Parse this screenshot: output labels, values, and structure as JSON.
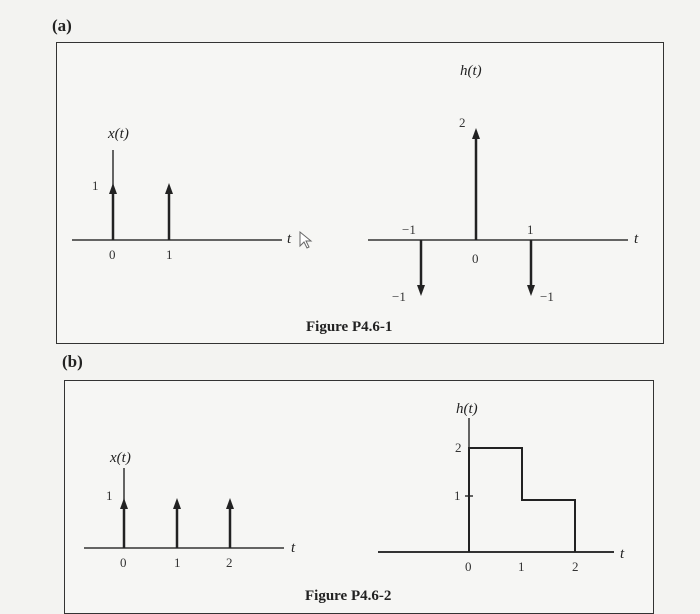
{
  "part_a": {
    "label": "(a)",
    "figure_caption": "Figure P4.6-1",
    "x_plot": {
      "title": "x(t)",
      "axis_var": "t",
      "impulses": [
        {
          "t": 0,
          "area": 1
        },
        {
          "t": 1,
          "area": 1
        }
      ],
      "tick_labels": [
        "0",
        "1"
      ],
      "amp_label": "1"
    },
    "h_plot": {
      "title": "h(t)",
      "axis_var": "t",
      "impulses": [
        {
          "t": -1,
          "area": -1
        },
        {
          "t": 0,
          "area": 2
        },
        {
          "t": 1,
          "area": -1
        }
      ],
      "tick_labels": [
        "−1",
        "0",
        "1"
      ],
      "amp_labels": {
        "peak": "2",
        "neg_left": "−1",
        "neg_right": "−1"
      }
    }
  },
  "part_b": {
    "label": "(b)",
    "figure_caption": "Figure P4.6-2",
    "x_plot": {
      "title": "x(t)",
      "axis_var": "t",
      "impulses": [
        {
          "t": 0,
          "area": 1
        },
        {
          "t": 1,
          "area": 1
        },
        {
          "t": 2,
          "area": 1
        }
      ],
      "tick_labels": [
        "0",
        "1",
        "2"
      ],
      "amp_label": "1"
    },
    "h_plot": {
      "title": "h(t)",
      "axis_var": "t",
      "segments": [
        {
          "from": 0,
          "to": 1,
          "value": 2
        },
        {
          "from": 1,
          "to": 2,
          "value": 1
        }
      ],
      "tick_labels": [
        "0",
        "1",
        "2"
      ],
      "y_tick_labels": [
        "2",
        "1"
      ]
    }
  }
}
